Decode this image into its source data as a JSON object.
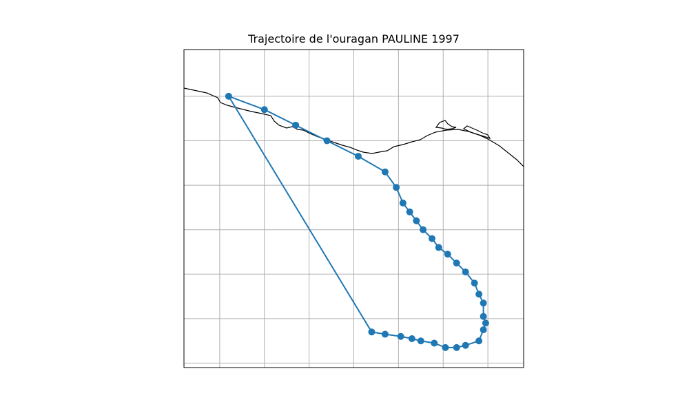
{
  "chart_data": {
    "type": "scatter",
    "title": "Trajectoire de l'ouragan PAULINE 1997",
    "xlabel": "",
    "ylabel": "",
    "xlim": [
      -100.8,
      -93.2
    ],
    "ylim": [
      10.9,
      18.05
    ],
    "grid": true,
    "x_gridlines": [
      -100,
      -99,
      -98,
      -97,
      -96,
      -95,
      -94
    ],
    "y_gridlines": [
      11,
      12,
      13,
      14,
      15,
      16,
      17
    ],
    "colors": {
      "track": "#1f77b4",
      "coast": "#000000",
      "grid": "#b0b0b0"
    },
    "series": [
      {
        "x": [
          -99.8,
          -99.0,
          -98.3,
          -97.6,
          -96.9,
          -96.3,
          -96.05,
          -95.9,
          -95.75,
          -95.6,
          -95.45,
          -95.25,
          -95.1,
          -94.9,
          -94.7,
          -94.5,
          -94.3,
          -94.2,
          -94.1,
          -94.1,
          -94.05,
          -94.1,
          -94.2,
          -94.5,
          -94.7,
          -94.95,
          -95.2,
          -95.5,
          -95.7,
          -95.95,
          -96.3,
          -96.6
        ],
        "y": [
          17.0,
          16.7,
          16.35,
          16.0,
          15.65,
          15.3,
          14.95,
          14.6,
          14.4,
          14.2,
          14.0,
          13.8,
          13.6,
          13.45,
          13.25,
          13.05,
          12.8,
          12.55,
          12.35,
          12.05,
          11.9,
          11.75,
          11.5,
          11.4,
          11.35,
          11.35,
          11.45,
          11.5,
          11.55,
          11.6,
          11.65,
          11.7
        ]
      }
    ]
  }
}
